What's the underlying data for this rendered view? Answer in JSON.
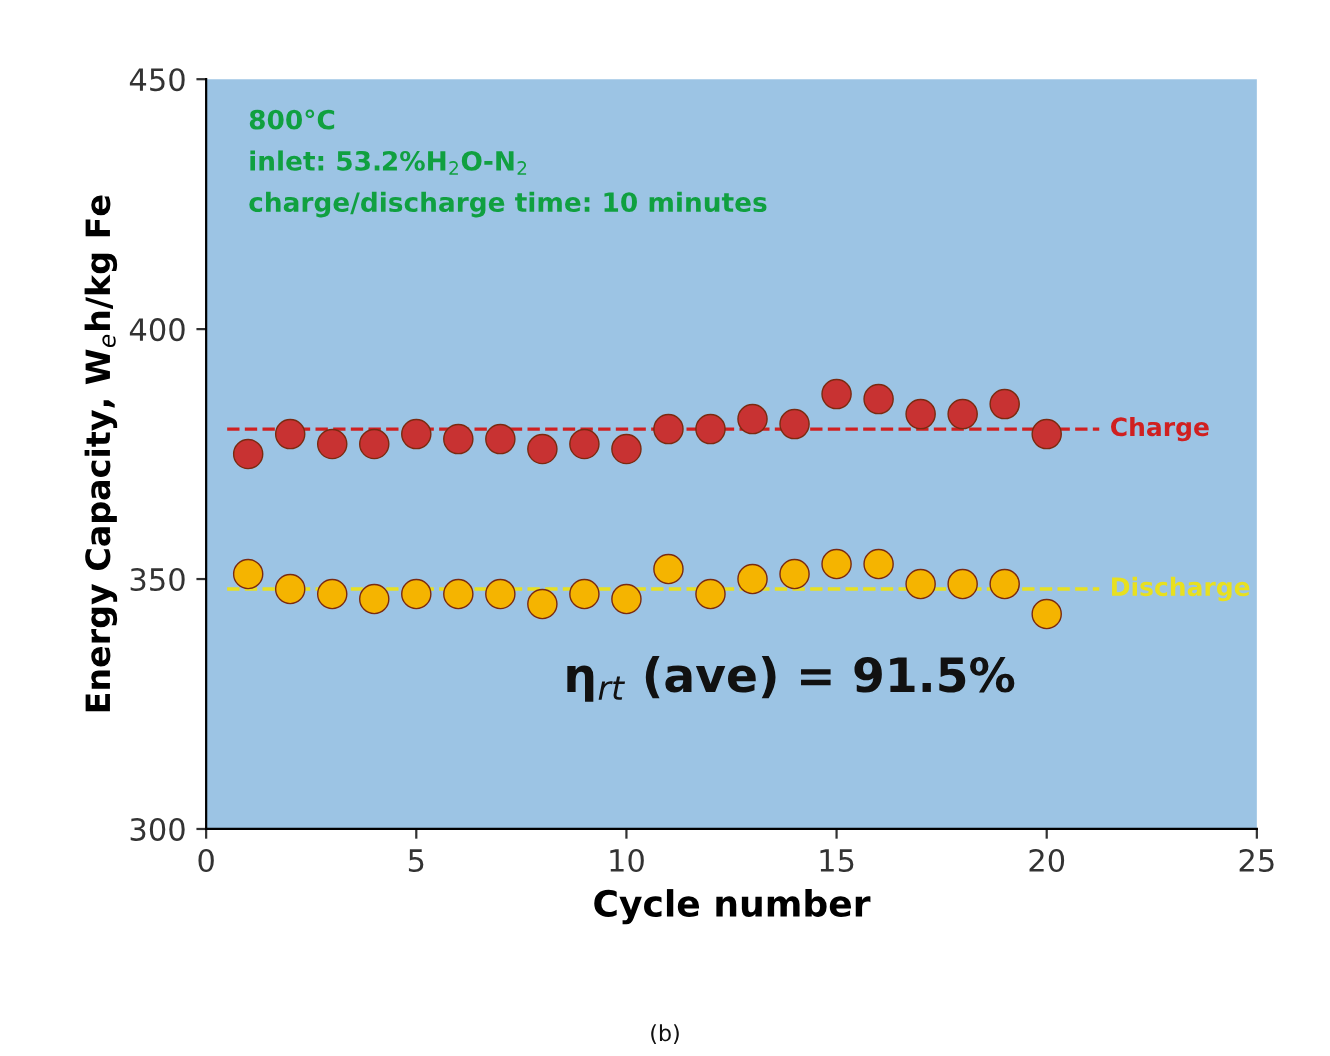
{
  "chart_data": {
    "type": "scatter",
    "xlabel": "Cycle number",
    "ylabel": "Energy Capacity, W$_{e}$h/kg Fe",
    "x": [
      1,
      2,
      3,
      4,
      5,
      6,
      7,
      8,
      9,
      10,
      11,
      12,
      13,
      14,
      15,
      16,
      17,
      18,
      19,
      20
    ],
    "series": [
      {
        "color": "#c83232",
        "values": [
          375,
          379,
          377,
          377,
          379,
          378,
          378,
          376,
          377,
          376,
          380,
          380,
          382,
          381,
          387,
          386,
          383,
          383,
          385,
          379
        ]
      },
      {
        "color": "#f5b400",
        "values": [
          351,
          348,
          347,
          346,
          347,
          347,
          347,
          345,
          347,
          346,
          352,
          347,
          350,
          351,
          353,
          353,
          349,
          349,
          349,
          343
        ]
      }
    ],
    "ref_lines": [
      {
        "axis": "y",
        "value": 380,
        "label": "Charge",
        "color": "#d02020",
        "line_style": "dashed"
      },
      {
        "axis": "y",
        "value": 348,
        "label": "Discharge",
        "color": "#e8e020",
        "line_style": "dashed"
      }
    ],
    "annotations": [
      "800°C",
      "inlet: 53.2%H$_{2}$O-N$_{2}$",
      "charge/discharge time: 10 minutes",
      "η$_{rt}$ (ave) = 91.5%",
      "(b)"
    ],
    "xlim": [
      0,
      25
    ],
    "xticks": [
      0,
      5,
      10,
      15,
      20,
      25
    ],
    "ylim": [
      300,
      450
    ],
    "yticks": [
      300,
      350,
      400,
      450
    ],
    "marker": "circle",
    "grid": false
  }
}
